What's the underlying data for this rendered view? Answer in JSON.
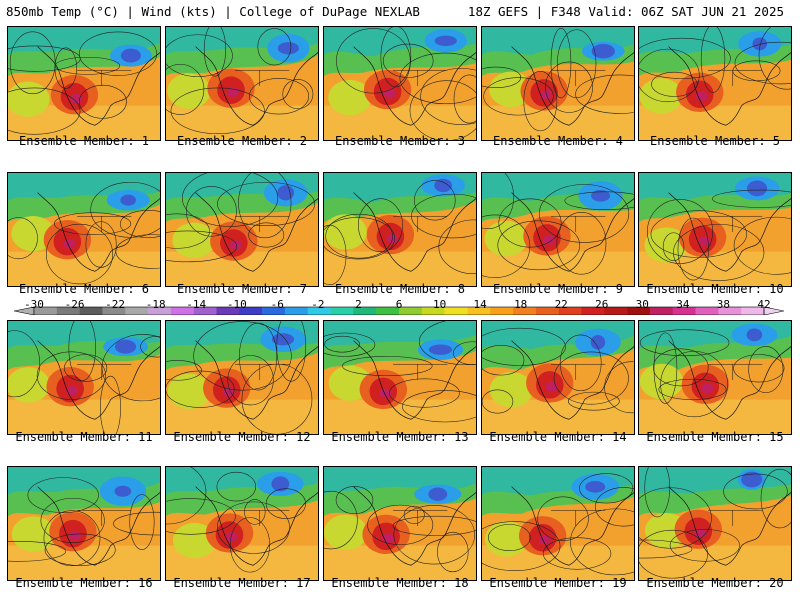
{
  "header": {
    "left_title": "850mb Temp (°C) | Wind (kts) | College of DuPage NEXLAB",
    "right_title": "18Z GEFS | F348 Valid: 06Z SAT JUN 21 2025"
  },
  "colorbar": {
    "labels": [
      "-30",
      "-26",
      "-22",
      "-18",
      "-14",
      "-10",
      "-6",
      "-2",
      "2",
      "6",
      "10",
      "14",
      "18",
      "22",
      "26",
      "30",
      "34",
      "38",
      "42"
    ],
    "colors": [
      "#9a9a9a",
      "#7a7a7a",
      "#5c5c5c",
      "#8a8a8a",
      "#a8a8a8",
      "#c8a0d8",
      "#d070e8",
      "#a060d0",
      "#6a3ab8",
      "#3c3cc8",
      "#2a6ae0",
      "#2a9ee8",
      "#30c8e8",
      "#28d0a8",
      "#20b878",
      "#40c040",
      "#90cc30",
      "#c8d820",
      "#f0e020",
      "#f8c020",
      "#f8a018",
      "#f08020",
      "#e86020",
      "#e04020",
      "#d02020",
      "#b81818",
      "#a01010",
      "#c02060",
      "#d83090",
      "#e060c0",
      "#e890d8",
      "#f0b8e8"
    ]
  },
  "panels": [
    {
      "label": "Ensemble Member: 1"
    },
    {
      "label": "Ensemble Member: 2"
    },
    {
      "label": "Ensemble Member: 3"
    },
    {
      "label": "Ensemble Member: 4"
    },
    {
      "label": "Ensemble Member: 5"
    },
    {
      "label": "Ensemble Member: 6"
    },
    {
      "label": "Ensemble Member: 7"
    },
    {
      "label": "Ensemble Member: 8"
    },
    {
      "label": "Ensemble Member: 9"
    },
    {
      "label": "Ensemble Member: 10"
    },
    {
      "label": "Ensemble Member: 11"
    },
    {
      "label": "Ensemble Member: 12"
    },
    {
      "label": "Ensemble Member: 13"
    },
    {
      "label": "Ensemble Member: 14"
    },
    {
      "label": "Ensemble Member: 15"
    },
    {
      "label": "Ensemble Member: 16"
    },
    {
      "label": "Ensemble Member: 17"
    },
    {
      "label": "Ensemble Member: 18"
    },
    {
      "label": "Ensemble Member: 19"
    },
    {
      "label": "Ensemble Member: 20"
    }
  ]
}
